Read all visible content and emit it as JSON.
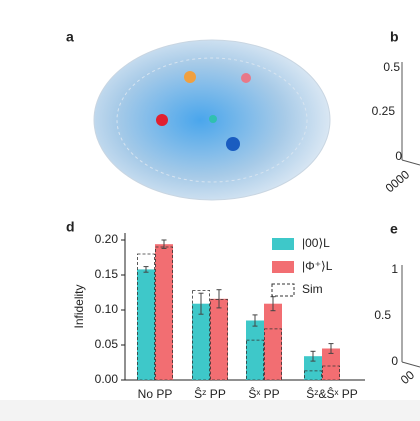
{
  "panels": {
    "a": "a",
    "b": "b",
    "d": "d",
    "e": "e",
    "b_ticks": [
      "0.5",
      "0.25",
      "0",
      "0000"
    ],
    "e_ticks": [
      "1",
      "0.5",
      "0",
      "00"
    ]
  },
  "chart_data": {
    "type": "bar",
    "y_label": "Infidelity",
    "categories": [
      "No PP",
      "Ŝᶻ PP",
      "Ŝˣ PP",
      "Ŝᶻ&Ŝˣ PP"
    ],
    "series": [
      {
        "name": "|00⟩L",
        "color": "#3ec8c9",
        "values": [
          0.158,
          0.109,
          0.085,
          0.034
        ],
        "errors": [
          0.004,
          0.015,
          0.008,
          0.007
        ]
      },
      {
        "name": "|Φ⁺⟩L",
        "color": "#f26e72",
        "values": [
          0.194,
          0.116,
          0.109,
          0.045
        ],
        "errors": [
          0.006,
          0.013,
          0.01,
          0.007
        ]
      }
    ],
    "sim": {
      "name": "Sim",
      "values": [
        [
          0.18,
          0.128,
          0.057,
          0.013
        ],
        [
          0.19,
          0.115,
          0.073,
          0.02
        ]
      ]
    },
    "ylim": [
      0,
      0.21
    ],
    "yticks": [
      {
        "value": 0,
        "label": "0.00"
      },
      {
        "value": 0.05,
        "label": "0.05"
      },
      {
        "value": 0.1,
        "label": "0.10"
      },
      {
        "value": 0.15,
        "label": "0.15"
      },
      {
        "value": 0.2,
        "label": "0.20"
      }
    ]
  }
}
